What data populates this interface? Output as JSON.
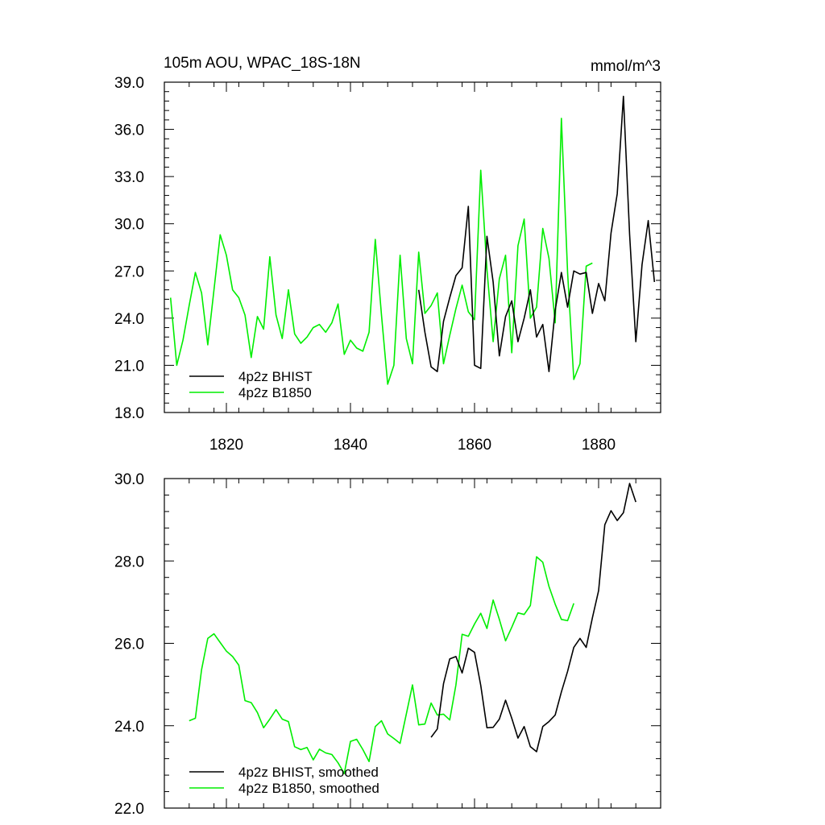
{
  "figure": {
    "title": "105m AOU, WPAC_18S-18N",
    "units": "mmol/m^3"
  },
  "colors": {
    "bhist": "#000000",
    "b1850": "#00ee00"
  },
  "chart_data": [
    {
      "type": "line",
      "title": "105m AOU, WPAC_18S-18N",
      "units": "mmol/m^3",
      "xlim": [
        1810,
        1890
      ],
      "ylim": [
        18,
        39
      ],
      "xticks": [
        1820,
        1840,
        1860,
        1880
      ],
      "yticks": [
        18,
        21,
        24,
        27,
        30,
        33,
        36,
        39
      ],
      "ytick_labels": [
        "18.0",
        "21.0",
        "24.0",
        "27.0",
        "30.0",
        "33.0",
        "36.0",
        "39.0"
      ],
      "legend_position": "bottom-left",
      "series": [
        {
          "name": "4p2z BHIST",
          "color": "#000000",
          "x": [
            1851,
            1852,
            1853,
            1854,
            1855,
            1856,
            1857,
            1858,
            1859,
            1860,
            1861,
            1862,
            1863,
            1864,
            1865,
            1866,
            1867,
            1868,
            1869,
            1870,
            1871,
            1872,
            1873,
            1874,
            1875,
            1876,
            1877,
            1878,
            1879,
            1880,
            1881,
            1882,
            1883,
            1884,
            1885,
            1886,
            1887,
            1888,
            1889
          ],
          "y": [
            25.8,
            23.1,
            20.9,
            20.6,
            23.8,
            25.3,
            26.7,
            27.2,
            31.1,
            21.0,
            20.8,
            29.2,
            26.3,
            21.6,
            24.1,
            25.1,
            22.5,
            24.0,
            25.8,
            22.8,
            23.6,
            20.6,
            24.5,
            26.9,
            24.7,
            27.0,
            26.8,
            26.9,
            24.3,
            26.2,
            25.1,
            29.4,
            31.9,
            38.1,
            29.3,
            22.5,
            27.4,
            30.2,
            26.3
          ]
        },
        {
          "name": "4p2z B1850",
          "color": "#00ee00",
          "x": [
            1811,
            1812,
            1813,
            1814,
            1815,
            1816,
            1817,
            1818,
            1819,
            1820,
            1821,
            1822,
            1823,
            1824,
            1825,
            1826,
            1827,
            1828,
            1829,
            1830,
            1831,
            1832,
            1833,
            1834,
            1835,
            1836,
            1837,
            1838,
            1839,
            1840,
            1841,
            1842,
            1843,
            1844,
            1845,
            1846,
            1847,
            1848,
            1849,
            1850,
            1851,
            1852,
            1853,
            1854,
            1855,
            1856,
            1857,
            1858,
            1859,
            1860,
            1861,
            1862,
            1863,
            1864,
            1865,
            1866,
            1867,
            1868,
            1869,
            1870,
            1871,
            1872,
            1873,
            1874,
            1875,
            1876,
            1877,
            1878,
            1879
          ],
          "y": [
            25.3,
            21.0,
            22.6,
            24.8,
            26.9,
            25.6,
            22.3,
            25.8,
            29.3,
            28.0,
            25.8,
            25.3,
            24.2,
            21.5,
            24.1,
            23.3,
            27.9,
            24.2,
            22.7,
            25.8,
            23.0,
            22.4,
            22.8,
            23.4,
            23.6,
            23.1,
            23.7,
            24.9,
            21.7,
            22.6,
            22.1,
            21.9,
            23.1,
            29.0,
            24.2,
            19.8,
            21.0,
            28.0,
            22.7,
            21.1,
            28.2,
            24.3,
            24.8,
            25.6,
            21.1,
            22.9,
            24.6,
            26.1,
            24.4,
            23.9,
            33.4,
            27.1,
            22.5,
            26.5,
            28.0,
            21.8,
            28.6,
            30.3,
            24.0,
            24.7,
            29.7,
            27.8,
            23.7,
            36.7,
            26.9,
            20.1,
            21.1,
            27.3,
            27.5
          ]
        }
      ]
    },
    {
      "type": "line",
      "xlim": [
        1810,
        1890
      ],
      "ylim": [
        22,
        30
      ],
      "xticks": [
        1820,
        1840,
        1860,
        1880
      ],
      "yticks": [
        22,
        24,
        26,
        28,
        30
      ],
      "ytick_labels": [
        "22.0",
        "24.0",
        "26.0",
        "28.0",
        "30.0"
      ],
      "legend_position": "bottom-left",
      "series": [
        {
          "name": "4p2z BHIST, smoothed",
          "color": "#000000",
          "x": [
            1853,
            1854,
            1855,
            1856,
            1857,
            1858,
            1859,
            1860,
            1861,
            1862,
            1863,
            1864,
            1865,
            1866,
            1867,
            1868,
            1869,
            1870,
            1871,
            1872,
            1873,
            1874,
            1875,
            1876,
            1877,
            1878,
            1879,
            1880,
            1881,
            1882,
            1883,
            1884,
            1885,
            1886
          ],
          "y": [
            23.72,
            23.92,
            25.02,
            25.62,
            25.68,
            25.28,
            25.88,
            25.78,
            24.98,
            23.95,
            23.96,
            24.16,
            24.62,
            24.18,
            23.7,
            23.98,
            23.49,
            23.37,
            23.98,
            24.1,
            24.26,
            24.82,
            25.32,
            25.9,
            26.12,
            25.9,
            26.62,
            27.28,
            28.88,
            29.22,
            28.98,
            29.17,
            29.88,
            29.43
          ]
        },
        {
          "name": "4p2z B1850, smoothed",
          "color": "#00ee00",
          "x": [
            1814,
            1815,
            1816,
            1817,
            1818,
            1819,
            1820,
            1821,
            1822,
            1823,
            1824,
            1825,
            1826,
            1827,
            1828,
            1829,
            1830,
            1831,
            1832,
            1833,
            1834,
            1835,
            1836,
            1837,
            1838,
            1839,
            1840,
            1841,
            1842,
            1843,
            1844,
            1845,
            1846,
            1847,
            1848,
            1849,
            1850,
            1851,
            1852,
            1853,
            1854,
            1855,
            1856,
            1857,
            1858,
            1859,
            1860,
            1861,
            1862,
            1863,
            1864,
            1865,
            1866,
            1867,
            1868,
            1869,
            1870,
            1871,
            1872,
            1873,
            1874,
            1875,
            1876
          ],
          "y": [
            24.12,
            24.18,
            25.36,
            26.12,
            26.23,
            26.02,
            25.81,
            25.68,
            25.47,
            24.61,
            24.56,
            24.32,
            23.95,
            24.16,
            24.39,
            24.16,
            24.1,
            23.49,
            23.42,
            23.47,
            23.17,
            23.43,
            23.34,
            23.3,
            23.1,
            22.84,
            23.62,
            23.67,
            23.42,
            23.13,
            23.98,
            24.12,
            23.8,
            23.69,
            23.57,
            24.28,
            24.99,
            24.02,
            24.04,
            24.55,
            24.26,
            24.28,
            24.14,
            24.99,
            26.22,
            26.17,
            26.47,
            26.73,
            26.36,
            27.05,
            26.58,
            26.06,
            26.39,
            26.74,
            26.7,
            26.92,
            28.1,
            27.97,
            27.38,
            26.95,
            26.58,
            26.55,
            26.97
          ]
        }
      ]
    }
  ]
}
